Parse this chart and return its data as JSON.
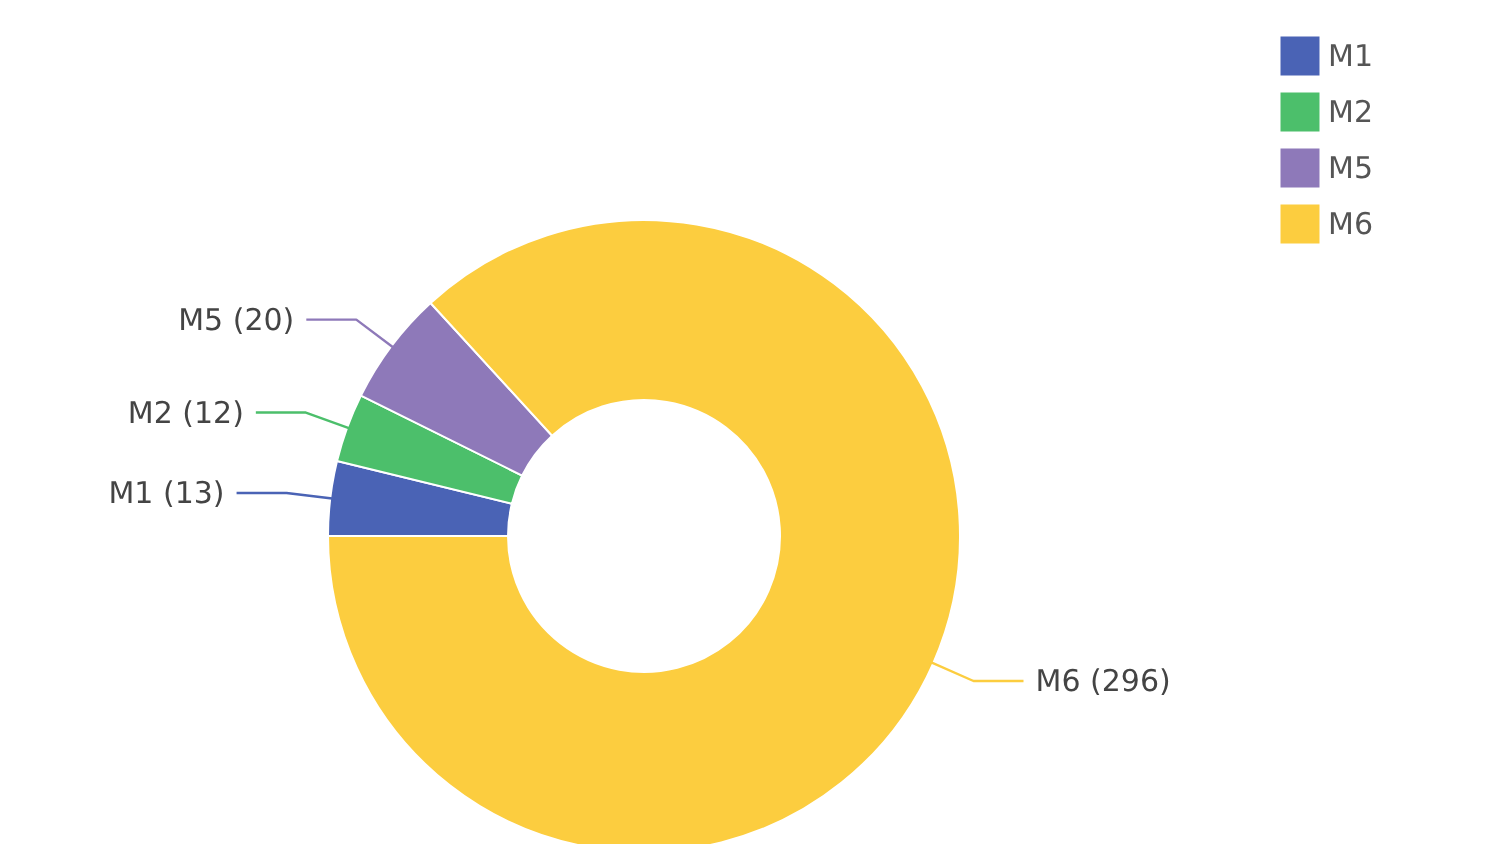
{
  "chart_data": {
    "type": "donut",
    "categories": [
      "M1",
      "M2",
      "M5",
      "M6"
    ],
    "values": [
      13,
      12,
      20,
      296
    ],
    "colors": [
      "#4a63b5",
      "#4cbf6b",
      "#8e79b9",
      "#fccd3f"
    ],
    "value_labels": [
      "M1 (13)",
      "M2 (12)",
      "M5 (20)",
      "M6 (296)"
    ],
    "legend": "top right"
  }
}
